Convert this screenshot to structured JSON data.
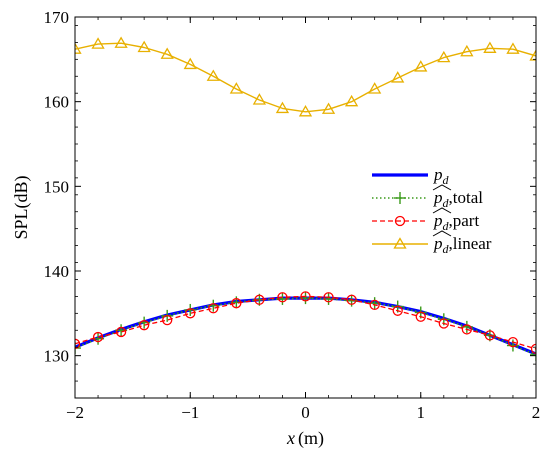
{
  "chart_data": {
    "type": "line",
    "xlabel_var": "x",
    "xlabel_unit": "(m)",
    "ylabel": "SPL(dB)",
    "xlim": [
      -2,
      2
    ],
    "ylim": [
      125,
      170
    ],
    "xticks": [
      -2,
      -1,
      0,
      1,
      2
    ],
    "yticks": [
      130,
      140,
      150,
      160,
      170
    ],
    "xtick_labels": [
      "−2",
      "−1",
      "0",
      "1",
      "2"
    ],
    "ytick_labels": [
      "130",
      "140",
      "150",
      "160",
      "170"
    ],
    "legend_position": "right",
    "series": [
      {
        "name_base": "p",
        "name_sub": "d",
        "name_suffix": "",
        "hat": false,
        "color": "#0000ff",
        "style": "solid-thick",
        "marker": "none",
        "x": [
          -2.0,
          -1.8,
          -1.6,
          -1.4,
          -1.2,
          -1.0,
          -0.8,
          -0.6,
          -0.4,
          -0.2,
          0.0,
          0.2,
          0.4,
          0.6,
          0.8,
          1.0,
          1.2,
          1.4,
          1.6,
          1.8,
          2.0
        ],
        "y": [
          131.0,
          132.1,
          133.1,
          134.0,
          134.8,
          135.4,
          136.0,
          136.4,
          136.6,
          136.8,
          136.8,
          136.8,
          136.6,
          136.3,
          135.8,
          135.2,
          134.4,
          133.5,
          132.4,
          131.3,
          130.2
        ]
      },
      {
        "name_base": "p",
        "name_sub": "d",
        "name_suffix": ",total",
        "hat": true,
        "color": "#3a9a1a",
        "style": "dotted",
        "marker": "plus",
        "x": [
          -2.0,
          -1.8,
          -1.6,
          -1.4,
          -1.2,
          -1.0,
          -0.8,
          -0.6,
          -0.4,
          -0.2,
          0.0,
          0.2,
          0.4,
          0.6,
          0.8,
          1.0,
          1.2,
          1.4,
          1.6,
          1.8,
          2.0
        ],
        "y": [
          130.9,
          132.0,
          133.0,
          133.9,
          134.7,
          135.4,
          135.9,
          136.3,
          136.6,
          136.7,
          136.8,
          136.7,
          136.5,
          136.2,
          135.8,
          135.1,
          134.3,
          133.4,
          132.4,
          131.2,
          130.1
        ]
      },
      {
        "name_base": "p",
        "name_sub": "d",
        "name_suffix": ",part",
        "hat": true,
        "color": "#ff0000",
        "style": "dashed",
        "marker": "circle",
        "x": [
          -2.0,
          -1.8,
          -1.6,
          -1.4,
          -1.2,
          -1.0,
          -0.8,
          -0.6,
          -0.4,
          -0.2,
          0.0,
          0.2,
          0.4,
          0.6,
          0.8,
          1.0,
          1.2,
          1.4,
          1.6,
          1.8,
          2.0
        ],
        "y": [
          131.4,
          132.2,
          132.8,
          133.6,
          134.2,
          135.0,
          135.6,
          136.2,
          136.6,
          136.9,
          137.0,
          136.9,
          136.6,
          136.0,
          135.3,
          134.6,
          133.8,
          133.1,
          132.4,
          131.6,
          130.8
        ]
      },
      {
        "name_base": "p",
        "name_sub": "d",
        "name_suffix": ",linear",
        "hat": true,
        "color": "#e8b000",
        "style": "solid",
        "marker": "triangle",
        "x": [
          -2.0,
          -1.8,
          -1.6,
          -1.4,
          -1.2,
          -1.0,
          -0.8,
          -0.6,
          -0.4,
          -0.2,
          0.0,
          0.2,
          0.4,
          0.6,
          0.8,
          1.0,
          1.2,
          1.4,
          1.6,
          1.8,
          2.0
        ],
        "y": [
          166.2,
          166.8,
          166.9,
          166.4,
          165.6,
          164.4,
          163.0,
          161.5,
          160.2,
          159.2,
          158.8,
          159.1,
          160.0,
          161.5,
          162.8,
          164.1,
          165.2,
          165.9,
          166.3,
          166.2,
          165.4
        ]
      }
    ]
  }
}
